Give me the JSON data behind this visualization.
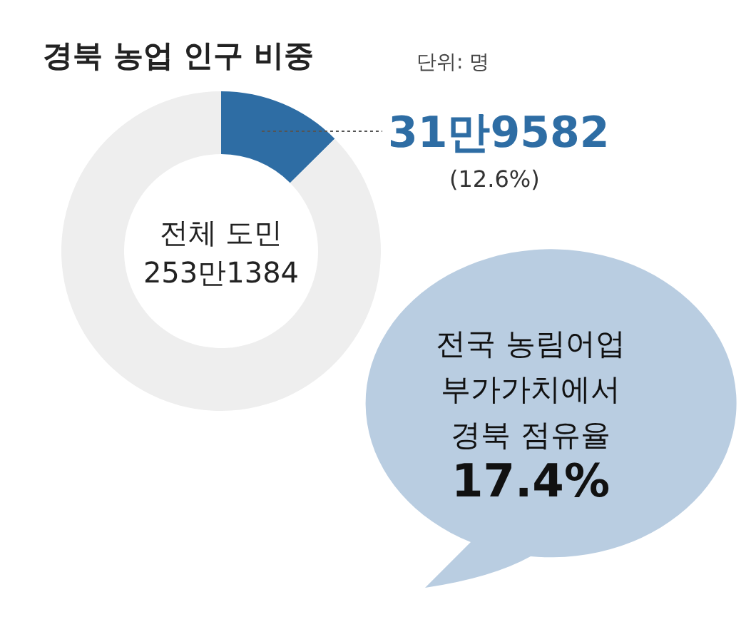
{
  "chart_data": {
    "type": "donut",
    "title": "경북 농업 인구 비중",
    "subtitle": "단위: 명",
    "categories": [
      null,
      null
    ],
    "values": [
      12.6,
      87.4
    ],
    "colors": [
      "#2e6da4",
      "#eeeeee"
    ],
    "value_labels": [
      "31만9582\n(12.6%)",
      null
    ],
    "annotations": [
      "전체 도민\n253만1384",
      "전국 농림어업\n부가가치에서\n경북 점유율\n17.4%"
    ]
  }
}
